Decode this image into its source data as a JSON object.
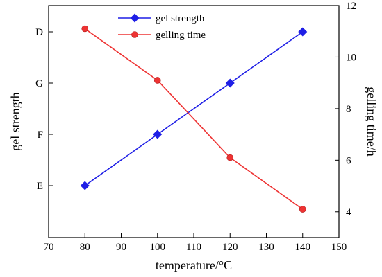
{
  "chart_data": {
    "type": "line",
    "x": [
      80,
      100,
      120,
      140
    ],
    "xlabel": "temperature/°C",
    "xlim": [
      70,
      150
    ],
    "xticks": [
      70,
      80,
      90,
      100,
      110,
      120,
      130,
      140,
      150
    ],
    "y_left": {
      "label": "gel strength",
      "categories": [
        "E",
        "F",
        "G",
        "D"
      ]
    },
    "y_right": {
      "label": "gelling time/h",
      "ylim": [
        3,
        12
      ],
      "ticks": [
        4,
        6,
        8,
        10,
        12
      ]
    },
    "series": [
      {
        "name": "gel strength",
        "axis": "left",
        "values": [
          "E",
          "F",
          "G",
          "D"
        ],
        "color": "#1f1fe6",
        "marker": "diamond"
      },
      {
        "name": "gelling time",
        "axis": "right",
        "values": [
          11.1,
          9.1,
          6.1,
          4.1
        ],
        "color": "#ee3333",
        "marker": "circle"
      }
    ],
    "legend_position": "top-center",
    "grid": false
  }
}
